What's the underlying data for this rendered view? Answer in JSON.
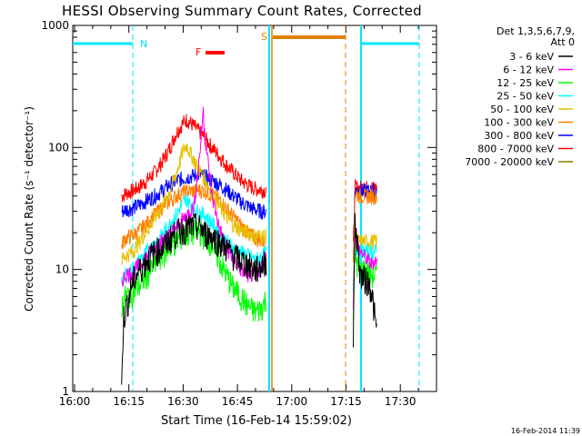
{
  "chart_data": {
    "type": "line",
    "title": "HESSI Observing Summary Count Rates, Corrected",
    "xlabel": "Start Time (16-Feb-14 15:59:02)",
    "ylabel": "Corrected Count Rate (s⁻¹ detector⁻¹)",
    "yscale": "log",
    "ylim": [
      1,
      1000
    ],
    "xlim_minutes": [
      0,
      100
    ],
    "x_tick_labels": [
      "16:00",
      "16:15",
      "16:30",
      "16:45",
      "17:00",
      "17:15",
      "17:30"
    ],
    "y_tick_labels": [
      "1",
      "10",
      "100",
      "1000"
    ],
    "legend_header": [
      "Det 1,3,5,6,7,9,",
      "Att 0"
    ],
    "legend_position": "top-right, outside plot",
    "footer_date": "16-Feb-2014 11:39",
    "annotations": {
      "N": "N",
      "F": "F",
      "S": "S"
    },
    "series": [
      {
        "name": "3 - 6 keV",
        "color": "#000000",
        "points": [
          [
            13,
            1
          ],
          [
            13.5,
            4
          ],
          [
            15,
            6
          ],
          [
            16,
            8
          ],
          [
            18,
            10
          ],
          [
            20,
            12
          ],
          [
            22,
            14
          ],
          [
            24,
            15
          ],
          [
            25,
            16
          ],
          [
            27,
            19
          ],
          [
            29,
            21
          ],
          [
            31,
            22
          ],
          [
            33,
            23
          ],
          [
            35,
            22
          ],
          [
            36,
            20
          ],
          [
            38,
            19
          ],
          [
            40,
            17
          ],
          [
            42,
            15
          ],
          [
            44,
            13
          ],
          [
            46,
            12
          ],
          [
            48,
            11
          ],
          [
            50,
            10
          ],
          [
            52,
            11
          ],
          [
            53,
            12
          ]
        ],
        "points2": [
          [
            77,
            3
          ],
          [
            77.5,
            25
          ],
          [
            78,
            18
          ],
          [
            79,
            9
          ],
          [
            81,
            8
          ],
          [
            82,
            7
          ],
          [
            83,
            4
          ],
          [
            83.5,
            3
          ]
        ]
      },
      {
        "name": "6 - 12 keV",
        "color": "#ff00ff",
        "points": [
          [
            13,
            8
          ],
          [
            14,
            9
          ],
          [
            16,
            9.5
          ],
          [
            18,
            11
          ],
          [
            20,
            13
          ],
          [
            22,
            15
          ],
          [
            24,
            17
          ],
          [
            26,
            19
          ],
          [
            28,
            22
          ],
          [
            30,
            26
          ],
          [
            32,
            30
          ],
          [
            33,
            33
          ],
          [
            34,
            60
          ],
          [
            35,
            120
          ],
          [
            35.5,
            210
          ],
          [
            36,
            130
          ],
          [
            37,
            70
          ],
          [
            38,
            40
          ],
          [
            40,
            22
          ],
          [
            42,
            15
          ],
          [
            44,
            12
          ],
          [
            46,
            10
          ],
          [
            48,
            9
          ],
          [
            50,
            9
          ],
          [
            52,
            11
          ],
          [
            53,
            14
          ]
        ],
        "points2": [
          [
            77,
            5
          ],
          [
            77.5,
            20
          ],
          [
            78,
            16
          ],
          [
            79,
            14
          ],
          [
            81,
            12
          ],
          [
            82,
            11
          ],
          [
            83,
            12
          ],
          [
            83.5,
            12
          ]
        ]
      },
      {
        "name": "12 - 25 keV",
        "color": "#00ff00",
        "points": [
          [
            13,
            5
          ],
          [
            14,
            6
          ],
          [
            16,
            6.5
          ],
          [
            18,
            7.5
          ],
          [
            20,
            9
          ],
          [
            22,
            11
          ],
          [
            24,
            13
          ],
          [
            26,
            15
          ],
          [
            28,
            17
          ],
          [
            30,
            19
          ],
          [
            32,
            20
          ],
          [
            34,
            21
          ],
          [
            36,
            19
          ],
          [
            38,
            16
          ],
          [
            40,
            12
          ],
          [
            42,
            9
          ],
          [
            44,
            7
          ],
          [
            46,
            6
          ],
          [
            48,
            5
          ],
          [
            50,
            4.5
          ],
          [
            52,
            5
          ],
          [
            53,
            6
          ]
        ],
        "points2": [
          [
            77,
            4
          ],
          [
            77.5,
            14
          ],
          [
            78,
            11
          ],
          [
            79,
            10
          ],
          [
            81,
            10
          ],
          [
            82,
            9
          ],
          [
            83,
            9
          ],
          [
            83.5,
            9
          ]
        ]
      },
      {
        "name": "25 - 50 keV",
        "color": "#00ffff",
        "points": [
          [
            13,
            8
          ],
          [
            14,
            9
          ],
          [
            16,
            10
          ],
          [
            18,
            12
          ],
          [
            20,
            14
          ],
          [
            22,
            16
          ],
          [
            24,
            19
          ],
          [
            26,
            23
          ],
          [
            28,
            28
          ],
          [
            30,
            35
          ],
          [
            31,
            38
          ],
          [
            32,
            34
          ],
          [
            34,
            30
          ],
          [
            36,
            28
          ],
          [
            38,
            24
          ],
          [
            40,
            20
          ],
          [
            42,
            17
          ],
          [
            44,
            15
          ],
          [
            46,
            14
          ],
          [
            48,
            13
          ],
          [
            50,
            12
          ],
          [
            52,
            13
          ],
          [
            53,
            14
          ]
        ],
        "points2": [
          [
            77,
            6
          ],
          [
            77.5,
            15
          ],
          [
            78,
            15
          ],
          [
            79,
            14
          ],
          [
            81,
            14
          ],
          [
            82,
            14
          ],
          [
            83,
            14
          ],
          [
            83.5,
            14
          ]
        ]
      },
      {
        "name": "50 - 100 keV",
        "color": "#e6c000",
        "points": [
          [
            13,
            12
          ],
          [
            14,
            13
          ],
          [
            16,
            14
          ],
          [
            18,
            17
          ],
          [
            20,
            21
          ],
          [
            22,
            26
          ],
          [
            24,
            32
          ],
          [
            26,
            42
          ],
          [
            28,
            60
          ],
          [
            30,
            95
          ],
          [
            31,
            105
          ],
          [
            32,
            90
          ],
          [
            34,
            70
          ],
          [
            36,
            55
          ],
          [
            38,
            42
          ],
          [
            40,
            33
          ],
          [
            42,
            27
          ],
          [
            44,
            23
          ],
          [
            46,
            21
          ],
          [
            48,
            20
          ],
          [
            50,
            19
          ],
          [
            52,
            19
          ],
          [
            53,
            19
          ]
        ],
        "points2": [
          [
            77,
            8
          ],
          [
            77.5,
            18
          ],
          [
            78,
            17
          ],
          [
            79,
            17
          ],
          [
            81,
            17
          ],
          [
            82,
            17
          ],
          [
            83,
            17
          ],
          [
            83.5,
            17
          ]
        ]
      },
      {
        "name": "100 - 300 keV",
        "color": "#ff8000",
        "points": [
          [
            13,
            16
          ],
          [
            14,
            18
          ],
          [
            16,
            19
          ],
          [
            18,
            21
          ],
          [
            20,
            24
          ],
          [
            22,
            28
          ],
          [
            24,
            32
          ],
          [
            26,
            36
          ],
          [
            28,
            40
          ],
          [
            30,
            43
          ],
          [
            32,
            44
          ],
          [
            34,
            45
          ],
          [
            36,
            44
          ],
          [
            38,
            41
          ],
          [
            40,
            37
          ],
          [
            42,
            32
          ],
          [
            44,
            27
          ],
          [
            46,
            23
          ],
          [
            48,
            20
          ],
          [
            50,
            18
          ],
          [
            52,
            17
          ],
          [
            53,
            17
          ]
        ],
        "points2": [
          [
            77,
            10
          ],
          [
            77.5,
            42
          ],
          [
            78,
            41
          ],
          [
            79,
            40
          ],
          [
            81,
            40
          ],
          [
            82,
            40
          ],
          [
            83,
            40
          ],
          [
            83.5,
            40
          ]
        ]
      },
      {
        "name": "300 - 800 keV",
        "color": "#0000ff",
        "points": [
          [
            13,
            30
          ],
          [
            14,
            31
          ],
          [
            16,
            32
          ],
          [
            18,
            34
          ],
          [
            20,
            37
          ],
          [
            22,
            40
          ],
          [
            24,
            44
          ],
          [
            26,
            49
          ],
          [
            28,
            53
          ],
          [
            30,
            56
          ],
          [
            32,
            58
          ],
          [
            34,
            60
          ],
          [
            36,
            58
          ],
          [
            38,
            54
          ],
          [
            40,
            50
          ],
          [
            42,
            45
          ],
          [
            44,
            40
          ],
          [
            46,
            36
          ],
          [
            48,
            33
          ],
          [
            50,
            31
          ],
          [
            52,
            30
          ],
          [
            53,
            30
          ]
        ],
        "points2": [
          [
            77,
            12
          ],
          [
            77.5,
            45
          ],
          [
            78,
            45
          ],
          [
            79,
            44
          ],
          [
            81,
            44
          ],
          [
            82,
            44
          ],
          [
            83,
            44
          ],
          [
            83.5,
            44
          ]
        ]
      },
      {
        "name": "800 - 7000 keV",
        "color": "#ff0000",
        "points": [
          [
            13,
            40
          ],
          [
            14,
            42
          ],
          [
            16,
            44
          ],
          [
            18,
            48
          ],
          [
            20,
            54
          ],
          [
            22,
            62
          ],
          [
            24,
            75
          ],
          [
            26,
            95
          ],
          [
            28,
            130
          ],
          [
            30,
            160
          ],
          [
            31,
            170
          ],
          [
            32,
            160
          ],
          [
            34,
            140
          ],
          [
            36,
            120
          ],
          [
            38,
            100
          ],
          [
            40,
            85
          ],
          [
            42,
            72
          ],
          [
            44,
            62
          ],
          [
            46,
            54
          ],
          [
            48,
            49
          ],
          [
            50,
            46
          ],
          [
            52,
            45
          ],
          [
            53,
            45
          ]
        ],
        "points2": [
          [
            77,
            15
          ],
          [
            77.5,
            48
          ],
          [
            78,
            47
          ],
          [
            79,
            47
          ],
          [
            81,
            47
          ],
          [
            82,
            47
          ],
          [
            83,
            47
          ],
          [
            83.5,
            47
          ]
        ]
      },
      {
        "name": "7000 - 20000 keV",
        "color": "#808000",
        "points": [],
        "points2": []
      }
    ]
  }
}
